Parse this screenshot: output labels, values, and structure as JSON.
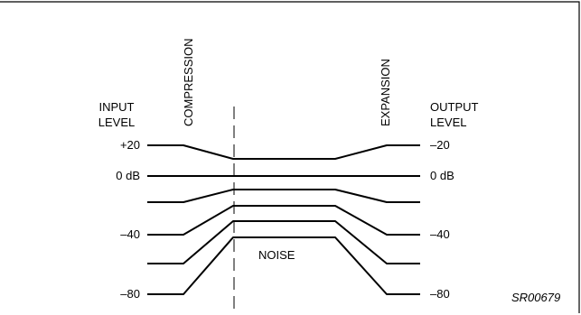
{
  "left_label": {
    "line1": "INPUT",
    "line2": "LEVEL"
  },
  "right_label": {
    "line1": "OUTPUT",
    "line2": "LEVEL"
  },
  "compression_label": "COMPRESSION",
  "expansion_label": "EXPANSION",
  "noise_label": "NOISE",
  "figure_code": "SR00679",
  "input_ticks": {
    "plus20": "+20",
    "zero": "0 dB",
    "minus40": "–40",
    "minus80": "–80"
  },
  "output_ticks": {
    "minus20": "–20",
    "zero": "0 dB",
    "minus40": "–40",
    "minus80": "–80"
  }
}
